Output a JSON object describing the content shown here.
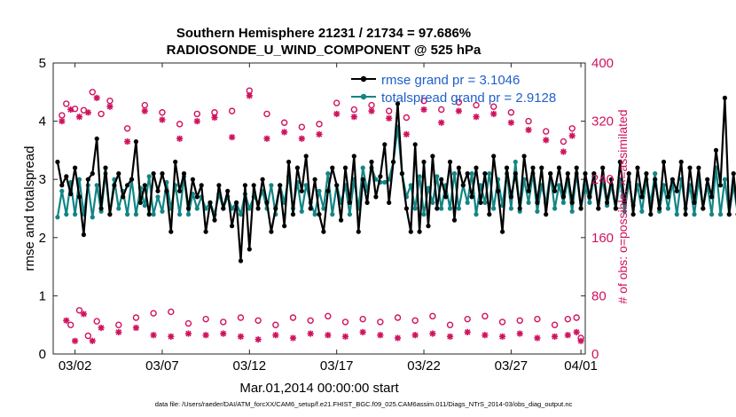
{
  "chart_data": {
    "type": "line",
    "title": "Southern Hemisphere 21231 / 21734 = 97.686%",
    "subtitle": "RADIOSONDE_U_WIND_COMPONENT @ 525 hPa",
    "xlabel": "Mar.01,2014 00:00:00 start",
    "ylabel_left": "rmse and totalspread",
    "ylabel_right": "# of obs: o=possible; ×=assimilated",
    "footnote": "data file: /Users/raeder/DAI/ATM_forcXX/CAM6_setup/f.e21.FHIST_BGC.f09_025.CAM6assim.011/Diags_NTrS_2014-03/obs_diag_output.nc",
    "xlim": [
      0.75,
      31.25
    ],
    "ylim_left": [
      0,
      5
    ],
    "ylim_right": [
      0,
      400
    ],
    "xticks": [
      {
        "value": 2,
        "label": "03/02"
      },
      {
        "value": 7,
        "label": "03/07"
      },
      {
        "value": 12,
        "label": "03/12"
      },
      {
        "value": 17,
        "label": "03/17"
      },
      {
        "value": 22,
        "label": "03/22"
      },
      {
        "value": 27,
        "label": "03/27"
      },
      {
        "value": 31,
        "label": "04/01"
      }
    ],
    "yticks_left": [
      "0",
      "1",
      "2",
      "3",
      "4",
      "5"
    ],
    "yticks_right": [
      "0",
      "80",
      "160",
      "240",
      "320",
      "400"
    ],
    "colors": {
      "rmse": "#000000",
      "spread": "#138585",
      "obs": "#d0125e",
      "legend_text": "#1f5fcc"
    },
    "x_step_days": 0.25,
    "x_start": 1,
    "series": [
      {
        "name": "rmse grand pr = 3.1046",
        "axis": "left",
        "color": "#000000",
        "values": [
          3.3,
          2.9,
          3.05,
          2.75,
          3.2,
          2.7,
          2.05,
          3.0,
          3.1,
          3.7,
          2.5,
          3.2,
          2.4,
          2.9,
          3.1,
          2.7,
          2.9,
          3.0,
          3.65,
          2.6,
          2.9,
          2.4,
          3.1,
          2.8,
          3.1,
          2.8,
          2.1,
          3.3,
          2.8,
          3.1,
          2.5,
          3.0,
          2.7,
          2.9,
          2.1,
          2.6,
          2.3,
          2.9,
          2.5,
          2.8,
          2.2,
          2.6,
          1.6,
          2.9,
          1.8,
          2.9,
          2.5,
          3.0,
          2.6,
          2.1,
          2.5,
          2.9,
          2.2,
          3.3,
          2.4,
          3.2,
          2.8,
          3.4,
          2.5,
          3.0,
          2.4,
          2.1,
          2.8,
          3.2,
          2.9,
          2.3,
          3.2,
          2.6,
          3.4,
          2.1,
          3.0,
          2.6,
          3.3,
          2.7,
          3.05,
          3.6,
          2.6,
          3.3,
          4.3,
          3.1,
          2.5,
          2.1,
          3.6,
          2.1,
          3.3,
          2.2,
          3.4,
          2.5,
          3.0,
          2.7,
          3.3,
          2.3,
          3.2,
          2.9,
          3.1,
          2.7,
          3.2,
          2.6,
          3.1,
          2.4,
          3.4,
          2.8,
          2.1,
          3.2,
          2.7,
          3.1,
          2.5,
          3.4,
          2.8,
          3.2,
          2.6,
          3.2,
          2.4,
          3.1,
          2.8,
          3.2,
          2.7,
          3.1,
          2.6,
          3.2,
          2.5,
          3.1,
          2.7,
          3.1,
          2.5,
          3.2,
          2.6,
          3.0,
          2.5,
          3.3,
          2.6,
          3.1,
          2.4,
          3.2,
          2.7,
          3.1,
          2.4,
          3.0,
          2.5,
          3.3,
          2.7,
          3.0,
          2.8,
          3.3,
          2.4,
          3.2,
          2.6,
          3.2,
          2.5,
          3.0,
          2.7,
          3.5,
          2.9,
          4.4,
          2.4,
          3.1,
          2.4,
          3.8,
          3.35
        ]
      },
      {
        "name": "totalspread grand pr = 2.9128",
        "axis": "left",
        "color": "#138585",
        "values": [
          2.35,
          2.8,
          2.4,
          2.95,
          2.4,
          3.0,
          2.4,
          2.9,
          2.35,
          2.9,
          2.45,
          3.1,
          2.4,
          3.0,
          2.5,
          2.8,
          2.4,
          3.0,
          2.4,
          2.85,
          2.55,
          3.05,
          2.4,
          2.7,
          2.45,
          2.95,
          2.5,
          2.9,
          2.4,
          3.05,
          2.4,
          2.75,
          2.5,
          2.7,
          2.5,
          2.6,
          2.4,
          2.75,
          2.5,
          2.7,
          2.5,
          2.6,
          2.4,
          2.75,
          2.5,
          2.7,
          2.6,
          2.8,
          2.5,
          2.9,
          2.4,
          2.9,
          2.6,
          3.05,
          2.5,
          2.95,
          2.45,
          2.9,
          2.6,
          2.4,
          2.8,
          2.5,
          3.1,
          2.4,
          2.9,
          2.6,
          2.9,
          2.4,
          3.0,
          2.5,
          3.2,
          2.8,
          3.2,
          3.0,
          2.95,
          2.95,
          3.0,
          3.3,
          3.9,
          3.1,
          2.7,
          2.9,
          2.5,
          3.05,
          2.4,
          2.85,
          2.6,
          3.05,
          2.5,
          2.9,
          2.5,
          3.1,
          2.5,
          2.9,
          2.6,
          3.1,
          2.4,
          2.9,
          2.6,
          3.1,
          2.5,
          3.0,
          2.55,
          3.1,
          2.5,
          3.3,
          2.45,
          3.0,
          2.6,
          3.1,
          2.45,
          2.9,
          2.6,
          3.1,
          2.5,
          2.9,
          2.6,
          3.0,
          2.45,
          3.1,
          2.5,
          2.9,
          2.6,
          3.05,
          2.5,
          3.0,
          2.55,
          2.9,
          2.5,
          3.0,
          2.45,
          2.95,
          2.55,
          2.9,
          2.45,
          3.0,
          2.6,
          3.1,
          2.45,
          2.9,
          2.5,
          2.95,
          2.4,
          3.0,
          2.5,
          2.9,
          2.4,
          3.0,
          2.5,
          2.9,
          2.4,
          3.2,
          2.4,
          3.0,
          2.4,
          2.9,
          2.4
        ]
      }
    ],
    "obs_series": [
      {
        "name": "possible",
        "axis": "right",
        "marker": "o",
        "color": "#d0125e",
        "values": [
          {
            "x": 1.25,
            "y": 328
          },
          {
            "x": 1.5,
            "y": 344
          },
          {
            "x": 1.75,
            "y": 40
          },
          {
            "x": 2.0,
            "y": 337
          },
          {
            "x": 2.25,
            "y": 60
          },
          {
            "x": 2.5,
            "y": 335
          },
          {
            "x": 2.75,
            "y": 25
          },
          {
            "x": 3.0,
            "y": 360
          },
          {
            "x": 3.25,
            "y": 45
          },
          {
            "x": 3.5,
            "y": 330
          },
          {
            "x": 4.0,
            "y": 348
          },
          {
            "x": 4.5,
            "y": 40
          },
          {
            "x": 5.0,
            "y": 310
          },
          {
            "x": 5.5,
            "y": 50
          },
          {
            "x": 6.0,
            "y": 342
          },
          {
            "x": 6.5,
            "y": 56
          },
          {
            "x": 7.0,
            "y": 332
          },
          {
            "x": 7.5,
            "y": 58
          },
          {
            "x": 8.0,
            "y": 316
          },
          {
            "x": 8.5,
            "y": 42
          },
          {
            "x": 9.0,
            "y": 330
          },
          {
            "x": 9.5,
            "y": 48
          },
          {
            "x": 10.0,
            "y": 332
          },
          {
            "x": 10.5,
            "y": 44
          },
          {
            "x": 11.0,
            "y": 334
          },
          {
            "x": 11.5,
            "y": 50
          },
          {
            "x": 12.0,
            "y": 362
          },
          {
            "x": 12.5,
            "y": 46
          },
          {
            "x": 13.0,
            "y": 330
          },
          {
            "x": 13.5,
            "y": 40
          },
          {
            "x": 14.0,
            "y": 318
          },
          {
            "x": 14.5,
            "y": 50
          },
          {
            "x": 15.0,
            "y": 312
          },
          {
            "x": 15.5,
            "y": 46
          },
          {
            "x": 16.0,
            "y": 316
          },
          {
            "x": 16.5,
            "y": 52
          },
          {
            "x": 17.0,
            "y": 345
          },
          {
            "x": 17.5,
            "y": 44
          },
          {
            "x": 18.0,
            "y": 336
          },
          {
            "x": 18.5,
            "y": 48
          },
          {
            "x": 19.0,
            "y": 342
          },
          {
            "x": 19.5,
            "y": 44
          },
          {
            "x": 20.0,
            "y": 334
          },
          {
            "x": 20.5,
            "y": 50
          },
          {
            "x": 21.0,
            "y": 325
          },
          {
            "x": 21.5,
            "y": 46
          },
          {
            "x": 22.0,
            "y": 348
          },
          {
            "x": 22.5,
            "y": 52
          },
          {
            "x": 23.0,
            "y": 336
          },
          {
            "x": 23.5,
            "y": 40
          },
          {
            "x": 24.0,
            "y": 346
          },
          {
            "x": 24.5,
            "y": 48
          },
          {
            "x": 25.0,
            "y": 342
          },
          {
            "x": 25.5,
            "y": 52
          },
          {
            "x": 26.0,
            "y": 340
          },
          {
            "x": 26.5,
            "y": 44
          },
          {
            "x": 27.0,
            "y": 332
          },
          {
            "x": 27.5,
            "y": 46
          },
          {
            "x": 28.0,
            "y": 320
          },
          {
            "x": 28.5,
            "y": 48
          },
          {
            "x": 29.0,
            "y": 306
          },
          {
            "x": 29.5,
            "y": 40
          },
          {
            "x": 30.0,
            "y": 292
          },
          {
            "x": 30.25,
            "y": 48
          },
          {
            "x": 30.5,
            "y": 310
          },
          {
            "x": 30.75,
            "y": 50
          },
          {
            "x": 31.0,
            "y": 22
          }
        ]
      },
      {
        "name": "assimilated",
        "axis": "right",
        "marker": "*",
        "color": "#d0125e",
        "values": [
          {
            "x": 1.25,
            "y": 320
          },
          {
            "x": 1.5,
            "y": 46
          },
          {
            "x": 1.75,
            "y": 336
          },
          {
            "x": 2.0,
            "y": 18
          },
          {
            "x": 2.25,
            "y": 326
          },
          {
            "x": 2.5,
            "y": 55
          },
          {
            "x": 2.75,
            "y": 332
          },
          {
            "x": 3.0,
            "y": 18
          },
          {
            "x": 3.25,
            "y": 352
          },
          {
            "x": 3.5,
            "y": 36
          },
          {
            "x": 4.0,
            "y": 340
          },
          {
            "x": 4.5,
            "y": 30
          },
          {
            "x": 5.0,
            "y": 292
          },
          {
            "x": 5.5,
            "y": 36
          },
          {
            "x": 6.0,
            "y": 334
          },
          {
            "x": 6.5,
            "y": 26
          },
          {
            "x": 7.0,
            "y": 322
          },
          {
            "x": 7.5,
            "y": 24
          },
          {
            "x": 8.0,
            "y": 296
          },
          {
            "x": 8.5,
            "y": 28
          },
          {
            "x": 9.0,
            "y": 320
          },
          {
            "x": 9.5,
            "y": 26
          },
          {
            "x": 10.0,
            "y": 325
          },
          {
            "x": 10.5,
            "y": 28
          },
          {
            "x": 11.0,
            "y": 298
          },
          {
            "x": 11.5,
            "y": 24
          },
          {
            "x": 12.0,
            "y": 355
          },
          {
            "x": 12.5,
            "y": 20
          },
          {
            "x": 13.0,
            "y": 296
          },
          {
            "x": 13.5,
            "y": 26
          },
          {
            "x": 14.0,
            "y": 305
          },
          {
            "x": 14.5,
            "y": 22
          },
          {
            "x": 15.0,
            "y": 296
          },
          {
            "x": 15.5,
            "y": 28
          },
          {
            "x": 16.0,
            "y": 302
          },
          {
            "x": 16.5,
            "y": 26
          },
          {
            "x": 17.0,
            "y": 330
          },
          {
            "x": 17.5,
            "y": 24
          },
          {
            "x": 18.0,
            "y": 326
          },
          {
            "x": 18.5,
            "y": 30
          },
          {
            "x": 19.0,
            "y": 334
          },
          {
            "x": 19.5,
            "y": 26
          },
          {
            "x": 20.0,
            "y": 324
          },
          {
            "x": 20.5,
            "y": 22
          },
          {
            "x": 21.0,
            "y": 302
          },
          {
            "x": 21.5,
            "y": 26
          },
          {
            "x": 22.0,
            "y": 336
          },
          {
            "x": 22.5,
            "y": 28
          },
          {
            "x": 23.0,
            "y": 318
          },
          {
            "x": 23.5,
            "y": 24
          },
          {
            "x": 24.0,
            "y": 334
          },
          {
            "x": 24.5,
            "y": 30
          },
          {
            "x": 25.0,
            "y": 326
          },
          {
            "x": 25.5,
            "y": 26
          },
          {
            "x": 26.0,
            "y": 330
          },
          {
            "x": 26.5,
            "y": 24
          },
          {
            "x": 27.0,
            "y": 318
          },
          {
            "x": 27.5,
            "y": 28
          },
          {
            "x": 28.0,
            "y": 308
          },
          {
            "x": 28.5,
            "y": 22
          },
          {
            "x": 29.0,
            "y": 294
          },
          {
            "x": 29.5,
            "y": 24
          },
          {
            "x": 30.0,
            "y": 278
          },
          {
            "x": 30.25,
            "y": 26
          },
          {
            "x": 30.5,
            "y": 300
          },
          {
            "x": 30.75,
            "y": 30
          },
          {
            "x": 31.0,
            "y": 18
          }
        ]
      }
    ]
  }
}
